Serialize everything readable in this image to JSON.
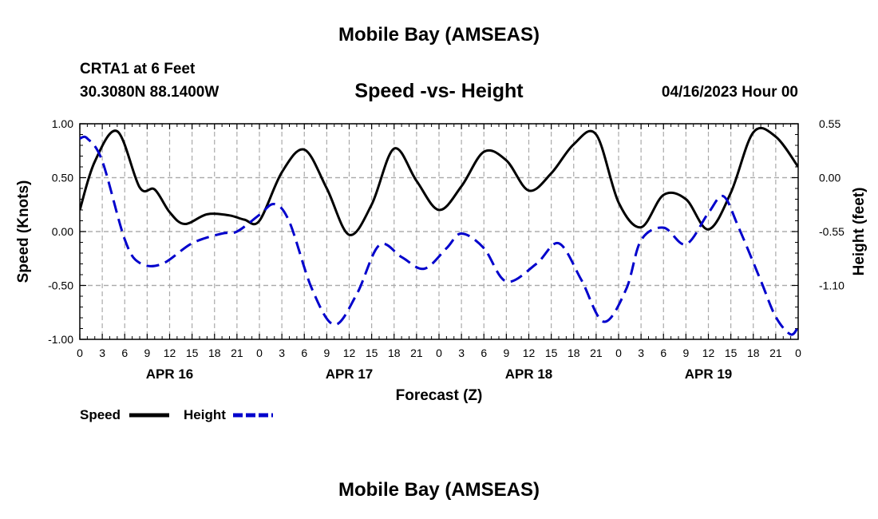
{
  "header": {
    "title": "Mobile Bay (AMSEAS)",
    "station": "CRTA1 at 6 Feet",
    "coords": "30.3080N  88.1400W",
    "subtitle": "Speed -vs- Height",
    "datetime": "04/16/2023 Hour 00",
    "footer_title": "Mobile Bay (AMSEAS)"
  },
  "colors": {
    "speed": "#000000",
    "height": "#0000cc",
    "grid": "#aaaaaa"
  },
  "chart_data": {
    "type": "line",
    "title": "Speed -vs- Height",
    "xlabel": "Forecast (Z)",
    "ylabel": "Speed (Knots)",
    "ylabel_right": "Height (feet)",
    "xlim": [
      0,
      96
    ],
    "ylim": [
      -1.0,
      1.0
    ],
    "ylim_right": [
      -1.65,
      0.55
    ],
    "y_ticks": [
      "1.00",
      "0.50",
      "0.00",
      "-0.50",
      "-1.00"
    ],
    "y_ticks_right": [
      "0.55",
      "0.00",
      "-0.55",
      "-1.10"
    ],
    "x_tick_labels": [
      "0",
      "3",
      "6",
      "9",
      "12",
      "15",
      "18",
      "21",
      "0",
      "3",
      "6",
      "9",
      "12",
      "15",
      "18",
      "21",
      "0",
      "3",
      "6",
      "9",
      "12",
      "15",
      "18",
      "21",
      "0",
      "3",
      "6",
      "9",
      "12",
      "15",
      "18",
      "21",
      "0"
    ],
    "date_labels": [
      "APR 16",
      "APR 17",
      "APR 18",
      "APR 19"
    ],
    "legend": [
      {
        "name": "Speed",
        "style": "solid"
      },
      {
        "name": "Height",
        "style": "dashed"
      }
    ],
    "series": [
      {
        "name": "Speed",
        "axis": "left",
        "x": [
          0,
          2,
          5,
          8,
          10,
          12,
          14,
          17,
          20,
          22,
          24,
          27,
          30,
          33,
          36,
          39,
          42,
          45,
          48,
          51,
          54,
          57,
          60,
          63,
          66,
          69,
          72,
          75,
          78,
          81,
          84,
          87,
          90,
          93,
          96
        ],
        "values": [
          0.2,
          0.65,
          0.93,
          0.41,
          0.39,
          0.18,
          0.07,
          0.16,
          0.15,
          0.11,
          0.1,
          0.55,
          0.76,
          0.4,
          -0.03,
          0.25,
          0.77,
          0.47,
          0.2,
          0.42,
          0.74,
          0.66,
          0.38,
          0.54,
          0.81,
          0.9,
          0.27,
          0.04,
          0.34,
          0.3,
          0.02,
          0.36,
          0.92,
          0.88,
          0.6
        ]
      },
      {
        "name": "Height",
        "axis": "right",
        "x": [
          0,
          1,
          3,
          6,
          8,
          11,
          15,
          19,
          21,
          24,
          26,
          28,
          31,
          34,
          37,
          40,
          43,
          46,
          49,
          51,
          54,
          57,
          61,
          64,
          67,
          70,
          73,
          75,
          78,
          81,
          84,
          86,
          88,
          91,
          93,
          95,
          96
        ],
        "values": [
          0.4,
          0.4,
          0.17,
          -0.63,
          -0.87,
          -0.88,
          -0.67,
          -0.57,
          -0.55,
          -0.38,
          -0.27,
          -0.45,
          -1.13,
          -1.5,
          -1.19,
          -0.69,
          -0.81,
          -0.93,
          -0.72,
          -0.57,
          -0.72,
          -1.06,
          -0.88,
          -0.67,
          -1.04,
          -1.47,
          -1.14,
          -0.64,
          -0.51,
          -0.68,
          -0.36,
          -0.19,
          -0.5,
          -1.05,
          -1.42,
          -1.6,
          -1.52
        ]
      }
    ]
  }
}
